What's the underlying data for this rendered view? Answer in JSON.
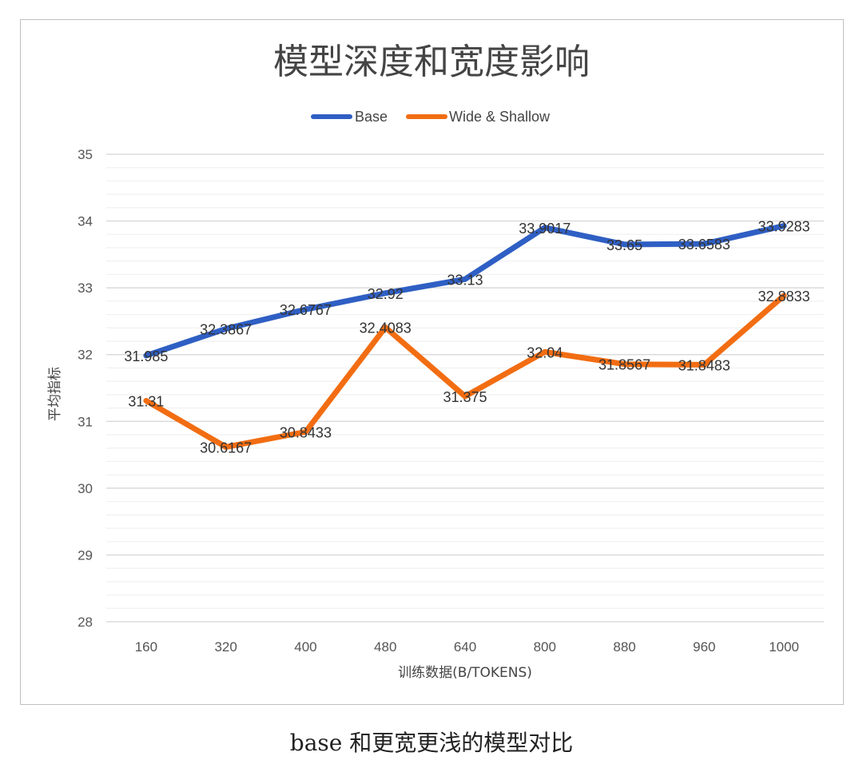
{
  "chart_data": {
    "type": "line",
    "title": "模型深度和宽度影响",
    "xlabel": "训练数据(B/TOKENS)",
    "ylabel": "平均指标",
    "categories": [
      "160",
      "320",
      "400",
      "480",
      "640",
      "800",
      "880",
      "960",
      "1000"
    ],
    "ylim": [
      28,
      35
    ],
    "yticks": [
      "28",
      "29",
      "30",
      "31",
      "32",
      "33",
      "34",
      "35"
    ],
    "grid": true,
    "legend_position": "top",
    "series": [
      {
        "name": "Base",
        "color": "#2f5fc4",
        "values": [
          31.985,
          32.3867,
          32.6767,
          32.92,
          33.13,
          33.9017,
          33.65,
          33.6583,
          33.9283
        ],
        "labels": [
          "31.985",
          "32.3867",
          "32.6767",
          "32.92",
          "33.13",
          "33.9017",
          "33.65",
          "33.6583",
          "33.9283"
        ]
      },
      {
        "name": "Wide & Shallow",
        "color": "#f26d12",
        "values": [
          31.31,
          30.6167,
          30.8433,
          32.4083,
          31.375,
          32.04,
          31.8567,
          31.8483,
          32.8833
        ],
        "labels": [
          "31.31",
          "30.6167",
          "30.8433",
          "32.4083",
          "31.375",
          "32.04",
          "31.8567",
          "31.8483",
          "32.8833"
        ]
      }
    ]
  },
  "caption": "base 和更宽更浅的模型对比"
}
